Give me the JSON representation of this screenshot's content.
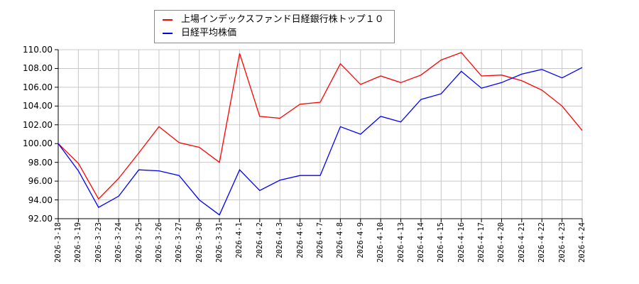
{
  "legend": {
    "items": [
      {
        "label": "上場インデックスファンド日経銀行株トップ１０",
        "color": "#ff0000"
      },
      {
        "label": "日経平均株価",
        "color": "#0000ff"
      }
    ]
  },
  "chart_data": {
    "type": "line",
    "categories": [
      "2026-3-18",
      "2026-3-19",
      "2026-3-23",
      "2026-3-24",
      "2026-3-25",
      "2026-3-26",
      "2026-3-27",
      "2026-3-30",
      "2026-3-31",
      "2026-4-1",
      "2026-4-2",
      "2026-4-3",
      "2026-4-6",
      "2026-4-7",
      "2026-4-8",
      "2026-4-9",
      "2026-4-10",
      "2026-4-13",
      "2026-4-14",
      "2026-4-15",
      "2026-4-16",
      "2026-4-17",
      "2026-4-20",
      "2026-4-21",
      "2026-4-22",
      "2026-4-23",
      "2026-4-24"
    ],
    "series": [
      {
        "name": "上場インデックスファンド日経銀行株トップ１０",
        "color": "#ff0000",
        "values": [
          100.0,
          97.9,
          94.1,
          96.3,
          99.0,
          101.8,
          100.1,
          99.6,
          98.0,
          109.6,
          102.9,
          102.7,
          104.2,
          104.4,
          108.5,
          106.3,
          107.2,
          106.5,
          107.3,
          108.9,
          109.7,
          107.2,
          107.3,
          106.7,
          105.7,
          104.0,
          101.4
        ]
      },
      {
        "name": "日経平均株価",
        "color": "#0000ff",
        "values": [
          100.0,
          97.1,
          93.2,
          94.4,
          97.2,
          97.1,
          96.6,
          94.0,
          92.4,
          97.2,
          95.0,
          96.1,
          96.6,
          96.6,
          101.8,
          101.0,
          102.9,
          102.3,
          104.7,
          105.3,
          107.7,
          105.9,
          106.5,
          107.4,
          107.9,
          107.0,
          108.1
        ]
      }
    ],
    "title": "",
    "xlabel": "",
    "ylabel": "",
    "ylim": [
      92,
      110
    ],
    "ytick_step": 2,
    "ytick_labels": [
      "92.00",
      "94.00",
      "96.00",
      "98.00",
      "100.00",
      "102.00",
      "104.00",
      "106.00",
      "108.00",
      "110.00"
    ],
    "grid": true,
    "grid_color": "#c8c8c8",
    "axis_color": "#000000",
    "legend_position": "top-center"
  }
}
